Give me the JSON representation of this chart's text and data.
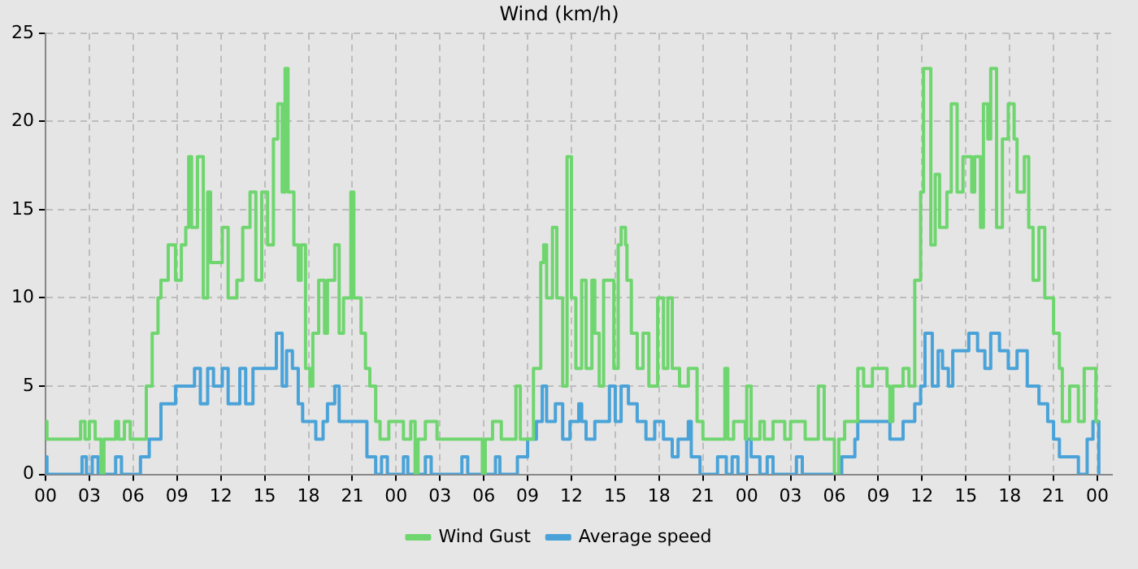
{
  "chart_data": {
    "type": "step",
    "title": "Wind (km/h)",
    "legend": "bottom",
    "grid": true,
    "marker": "none",
    "xlim": [
      0,
      73
    ],
    "xticks": [
      {
        "value": 0,
        "label": "00"
      },
      {
        "value": 3,
        "label": "03"
      },
      {
        "value": 6,
        "label": "06"
      },
      {
        "value": 9,
        "label": "09"
      },
      {
        "value": 12,
        "label": "12"
      },
      {
        "value": 15,
        "label": "15"
      },
      {
        "value": 18,
        "label": "18"
      },
      {
        "value": 21,
        "label": "21"
      },
      {
        "value": 24,
        "label": "00"
      },
      {
        "value": 27,
        "label": "03"
      },
      {
        "value": 30,
        "label": "06"
      },
      {
        "value": 33,
        "label": "09"
      },
      {
        "value": 36,
        "label": "12"
      },
      {
        "value": 39,
        "label": "15"
      },
      {
        "value": 42,
        "label": "18"
      },
      {
        "value": 45,
        "label": "21"
      },
      {
        "value": 48,
        "label": "00"
      },
      {
        "value": 51,
        "label": "03"
      },
      {
        "value": 54,
        "label": "06"
      },
      {
        "value": 57,
        "label": "09"
      },
      {
        "value": 60,
        "label": "12"
      },
      {
        "value": 63,
        "label": "15"
      },
      {
        "value": 66,
        "label": "18"
      },
      {
        "value": 69,
        "label": "21"
      },
      {
        "value": 72,
        "label": "00"
      }
    ],
    "ylim": [
      0,
      25
    ],
    "yticks": [
      0,
      5,
      10,
      15,
      20,
      25
    ],
    "series": [
      {
        "name": "Wind Gust",
        "color": "#6fd66f",
        "x": [
          0,
          0.1,
          1,
          2.4,
          2.7,
          3.0,
          3.4,
          3.8,
          4.0,
          4.8,
          5.0,
          5.4,
          5.8,
          6.9,
          7.3,
          7.7,
          7.9,
          8.4,
          8.9,
          9.3,
          9.6,
          9.8,
          10.0,
          10.4,
          10.8,
          11.1,
          11.3,
          12.1,
          12.5,
          13.1,
          13.5,
          14.0,
          14.4,
          14.8,
          15.2,
          15.6,
          15.9,
          16.2,
          16.4,
          16.6,
          17.0,
          17.3,
          17.5,
          17.8,
          18.1,
          18.3,
          18.7,
          19.1,
          19.3,
          19.8,
          20.1,
          20.4,
          20.9,
          21.1,
          21.6,
          21.9,
          22.2,
          22.6,
          22.9,
          23.5,
          24.3,
          24.5,
          25.0,
          25.3,
          25.5,
          26.0,
          26.8,
          29.9,
          30.1,
          30.6,
          31.2,
          32.2,
          32.5,
          33.4,
          33.9,
          34.1,
          34.3,
          34.7,
          35.0,
          35.4,
          35.7,
          36.0,
          36.3,
          36.7,
          37.0,
          37.4,
          37.6,
          37.9,
          38.2,
          38.9,
          39.2,
          39.4,
          39.7,
          39.8,
          40.1,
          40.5,
          40.9,
          41.3,
          41.9,
          42.3,
          42.6,
          42.9,
          43.4,
          44.0,
          44.6,
          45.0,
          46.5,
          46.7,
          47.1,
          47.9,
          48.0,
          48.3,
          48.9,
          49.2,
          49.8,
          50.6,
          51.0,
          52.0,
          52.9,
          53.3,
          54.0,
          54.3,
          54.7,
          55.6,
          56.0,
          56.6,
          57.6,
          57.8,
          58.0,
          58.7,
          59.1,
          59.5,
          59.9,
          60.1,
          60.6,
          60.9,
          61.2,
          61.7,
          62.0,
          62.4,
          62.8,
          63.4,
          63.6,
          64.0,
          64.2,
          64.5,
          64.7,
          65.1,
          65.5,
          65.9,
          66.3,
          66.5,
          67.0,
          67.3,
          67.6,
          68.0,
          68.4,
          69.0,
          69.4,
          69.6,
          70.1,
          70.7,
          71.1,
          71.9,
          72.1
        ],
        "values": [
          3,
          2,
          2,
          3,
          2,
          3,
          2,
          0,
          2,
          3,
          2,
          3,
          2,
          5,
          8,
          10,
          11,
          13,
          11,
          13,
          14,
          18,
          14,
          18,
          10,
          16,
          12,
          14,
          10,
          11,
          14,
          16,
          11,
          16,
          13,
          19,
          21,
          16,
          23,
          16,
          13,
          11,
          13,
          6,
          5,
          8,
          11,
          8,
          11,
          13,
          8,
          10,
          16,
          10,
          8,
          6,
          5,
          3,
          2,
          3,
          3,
          2,
          3,
          0,
          2,
          3,
          2,
          0,
          2,
          3,
          2,
          5,
          2,
          6,
          12,
          13,
          10,
          14,
          10,
          5,
          18,
          10,
          6,
          11,
          6,
          11,
          8,
          5,
          11,
          6,
          13,
          14,
          13,
          11,
          8,
          6,
          8,
          5,
          10,
          6,
          10,
          6,
          5,
          6,
          3,
          2,
          6,
          2,
          3,
          2,
          5,
          2,
          3,
          2,
          3,
          2,
          3,
          2,
          5,
          2,
          0,
          2,
          3,
          6,
          5,
          6,
          5,
          3,
          5,
          6,
          5,
          11,
          16,
          23,
          13,
          17,
          14,
          16,
          21,
          16,
          18,
          16,
          18,
          14,
          21,
          19,
          23,
          14,
          19,
          21,
          19,
          16,
          18,
          14,
          11,
          14,
          10,
          8,
          6,
          3,
          5,
          3,
          6,
          3,
          3
        ]
      },
      {
        "name": "Average speed",
        "color": "#4aa3d8",
        "x": [
          0,
          0.1,
          2.5,
          2.8,
          3.2,
          3.6,
          4.8,
          5.2,
          6.5,
          7.1,
          7.9,
          8.9,
          10.2,
          10.6,
          11.1,
          11.5,
          12.1,
          12.5,
          13.3,
          13.7,
          14.2,
          15.0,
          15.8,
          16.2,
          16.5,
          16.9,
          17.3,
          17.6,
          18.5,
          19.0,
          19.3,
          19.8,
          20.1,
          22.0,
          22.6,
          23.0,
          23.4,
          24.3,
          24.5,
          24.8,
          26.0,
          26.4,
          28.5,
          28.9,
          30.8,
          31.1,
          32.3,
          33.0,
          33.6,
          34.0,
          34.3,
          34.9,
          35.4,
          35.9,
          36.5,
          36.7,
          37.0,
          37.6,
          38.6,
          39.0,
          39.4,
          39.9,
          40.5,
          41.1,
          41.7,
          42.3,
          42.9,
          43.3,
          44.0,
          44.2,
          44.8,
          46.0,
          46.6,
          47.0,
          47.4,
          48.0,
          48.3,
          48.9,
          49.4,
          49.8,
          51.4,
          51.8,
          54.5,
          55.4,
          55.6,
          56.4,
          57.8,
          58.7,
          59.5,
          59.9,
          60.2,
          60.7,
          61.1,
          61.4,
          61.8,
          62.1,
          63.2,
          63.8,
          64.3,
          64.7,
          65.3,
          65.9,
          66.5,
          67.2,
          68.0,
          68.6,
          69.0,
          69.4,
          70.7,
          71.3,
          71.7,
          72.1
        ],
        "values": [
          1,
          0,
          1,
          0,
          1,
          0,
          1,
          0,
          1,
          2,
          4,
          5,
          6,
          4,
          6,
          5,
          6,
          4,
          6,
          4,
          6,
          6,
          8,
          5,
          7,
          6,
          4,
          3,
          2,
          3,
          4,
          5,
          3,
          1,
          0,
          1,
          0,
          0,
          1,
          0,
          1,
          0,
          1,
          0,
          1,
          0,
          1,
          2,
          3,
          5,
          3,
          4,
          2,
          3,
          4,
          3,
          2,
          3,
          5,
          3,
          5,
          4,
          3,
          2,
          3,
          2,
          1,
          2,
          3,
          1,
          0,
          1,
          0,
          1,
          0,
          2,
          1,
          0,
          1,
          0,
          1,
          0,
          1,
          2,
          3,
          3,
          2,
          3,
          4,
          5,
          8,
          5,
          7,
          6,
          5,
          7,
          8,
          7,
          6,
          8,
          7,
          6,
          7,
          5,
          4,
          3,
          2,
          1,
          0,
          2,
          3,
          0
        ]
      }
    ]
  }
}
